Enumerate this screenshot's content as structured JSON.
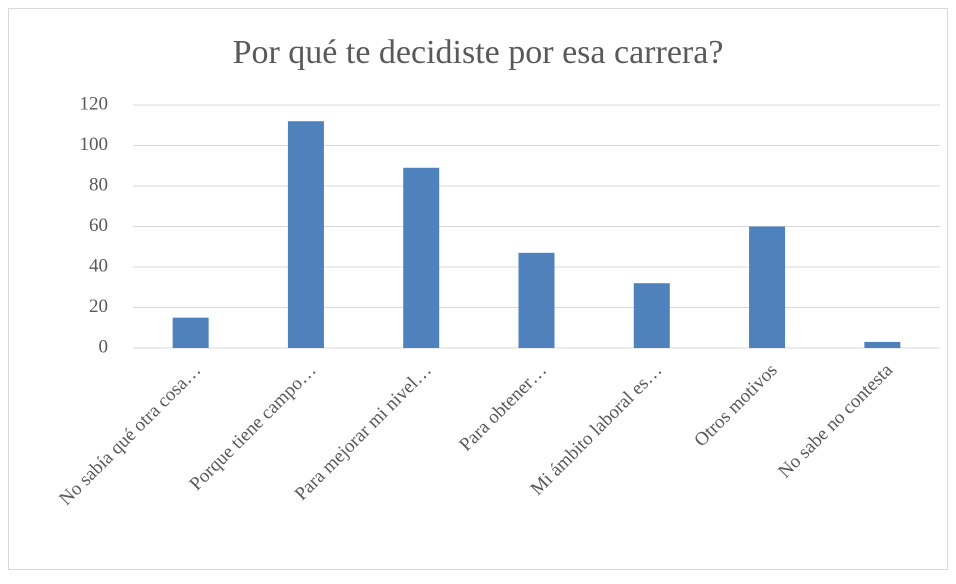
{
  "chart_data": {
    "type": "bar",
    "title": "Por qué te decidiste por esa carrera?",
    "categories": [
      "No sabía qué otra cosa…",
      "Porque tiene campo…",
      "Para mejorar mi nivel…",
      "Para obtener…",
      "Mi ámbito laboral es…",
      "Otros motivos",
      "No sabe no contesta"
    ],
    "values": [
      15,
      112,
      89,
      47,
      32,
      60,
      3
    ],
    "color": "#4f81bd",
    "ylim": [
      0,
      120
    ],
    "yticks": [
      0,
      20,
      40,
      60,
      80,
      100,
      120
    ],
    "grid": true
  }
}
